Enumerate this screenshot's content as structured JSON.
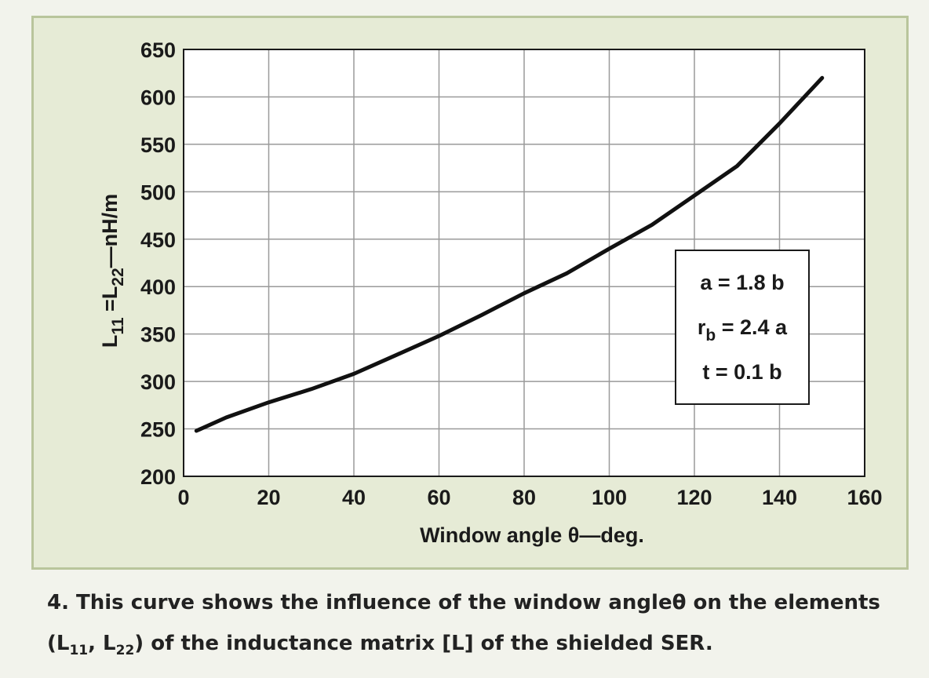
{
  "colors": {
    "panel_background": "#e6ebd6",
    "panel_border": "#b9c59c",
    "plot_background": "#ffffff",
    "grid": "#9a9a9a",
    "curve": "#111111"
  },
  "chart_data": {
    "type": "line",
    "xlabel": "Window angle θ—deg.",
    "ylabel": {
      "prefix": "L",
      "sub1": "11",
      "middle": " =L",
      "sub2": "22",
      "suffix": "—nH/m"
    },
    "xlim": [
      0,
      160
    ],
    "ylim": [
      200,
      650
    ],
    "xticks": [
      0,
      20,
      40,
      60,
      80,
      100,
      120,
      140,
      160
    ],
    "yticks": [
      200,
      250,
      300,
      350,
      400,
      450,
      500,
      550,
      600,
      650
    ],
    "grid": true,
    "series": [
      {
        "x": [
          3,
          10,
          20,
          30,
          40,
          50,
          60,
          70,
          80,
          90,
          100,
          110,
          120,
          130,
          140,
          150
        ],
        "y": [
          248,
          262,
          278,
          292,
          308,
          328,
          348,
          370,
          393,
          414,
          440,
          465,
          496,
          527,
          572,
          620
        ]
      }
    ],
    "annotation": {
      "position": "right-middle",
      "lines": [
        {
          "main": "a = 1.8 b"
        },
        {
          "main": "r",
          "sub": "b",
          "rest": " = 2.4 a"
        },
        {
          "main": "t = 0.1 b"
        }
      ]
    }
  },
  "caption": {
    "part1": "4. This curve shows the influence of the window angleθ on the elements",
    "part2a": "(L",
    "sub_a": "11",
    "part2b": ", L",
    "sub_b": "22",
    "part2c": ") of the inductance matrix [L] of the shielded SER."
  }
}
